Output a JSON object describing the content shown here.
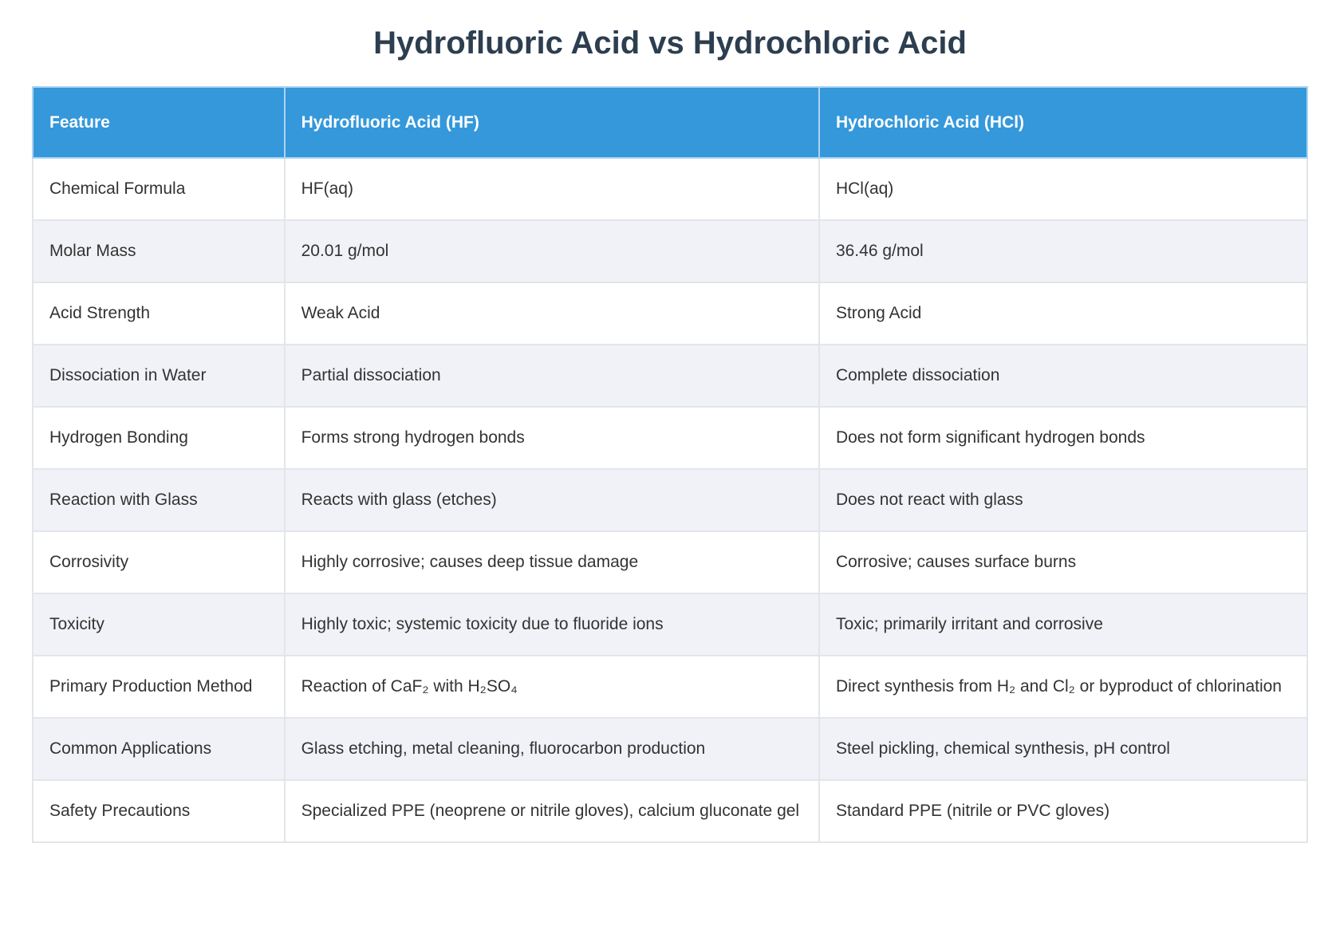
{
  "title": "Hydrofluoric Acid vs Hydrochloric Acid",
  "colors": {
    "header_bg": "#3498db",
    "header_text": "#ffffff",
    "title_text": "#2c3e50",
    "row_alt_bg": "#f0f2f7",
    "row_bg": "#ffffff",
    "border": "#e2e5e9",
    "cell_text": "#333333"
  },
  "table": {
    "columns": [
      {
        "label": "Feature"
      },
      {
        "label": "Hydrofluoric Acid (HF)"
      },
      {
        "label": "Hydrochloric Acid (HCl)"
      }
    ],
    "rows": [
      {
        "feature": "Chemical Formula",
        "hf": "HF(aq)",
        "hcl": "HCl(aq)"
      },
      {
        "feature": "Molar Mass",
        "hf": "20.01 g/mol",
        "hcl": "36.46 g/mol"
      },
      {
        "feature": "Acid Strength",
        "hf": "Weak Acid",
        "hcl": "Strong Acid"
      },
      {
        "feature": "Dissociation in Water",
        "hf": "Partial dissociation",
        "hcl": "Complete dissociation"
      },
      {
        "feature": "Hydrogen Bonding",
        "hf": "Forms strong hydrogen bonds",
        "hcl": "Does not form significant hydrogen bonds"
      },
      {
        "feature": "Reaction with Glass",
        "hf": "Reacts with glass (etches)",
        "hcl": "Does not react with glass"
      },
      {
        "feature": "Corrosivity",
        "hf": "Highly corrosive; causes deep tissue damage",
        "hcl": "Corrosive; causes surface burns"
      },
      {
        "feature": "Toxicity",
        "hf": "Highly toxic; systemic toxicity due to fluoride ions",
        "hcl": "Toxic; primarily irritant and corrosive"
      },
      {
        "feature": "Primary Production Method",
        "hf": "Reaction of CaF₂ with H₂SO₄",
        "hcl": "Direct synthesis from H₂ and Cl₂ or byproduct of chlorination"
      },
      {
        "feature": "Common Applications",
        "hf": "Glass etching, metal cleaning, fluorocarbon production",
        "hcl": "Steel pickling, chemical synthesis, pH control"
      },
      {
        "feature": "Safety Precautions",
        "hf": "Specialized PPE (neoprene or nitrile gloves), calcium gluconate gel",
        "hcl": "Standard PPE (nitrile or PVC gloves)"
      }
    ]
  }
}
